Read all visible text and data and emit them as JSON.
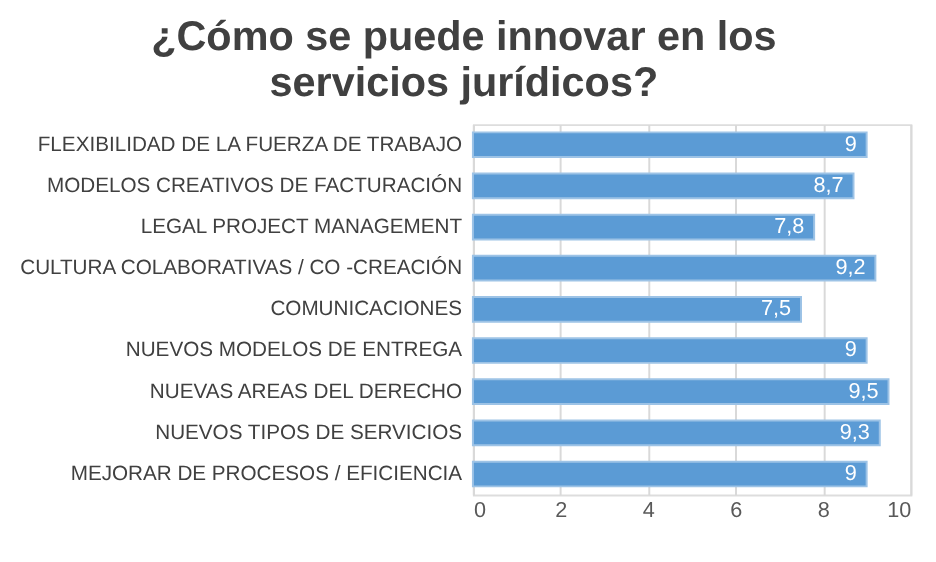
{
  "chart_data": {
    "type": "bar",
    "orientation": "horizontal",
    "title": "¿Cómo se puede innovar en los servicios jurídicos?",
    "categories": [
      "FLEXIBILIDAD DE LA FUERZA DE TRABAJO",
      "MODELOS CREATIVOS DE FACTURACIÓN",
      "LEGAL PROJECT MANAGEMENT",
      "CULTURA COLABORATIVAS / CO -CREACIÓN",
      "COMUNICACIONES",
      "NUEVOS MODELOS DE ENTREGA",
      "NUEVAS AREAS DEL DERECHO",
      "NUEVOS TIPOS DE SERVICIOS",
      "MEJORAR DE PROCESOS / EFICIENCIA"
    ],
    "values": [
      9,
      8.7,
      7.8,
      9.2,
      7.5,
      9,
      9.5,
      9.3,
      9
    ],
    "value_labels": [
      "9",
      "8,7",
      "7,8",
      "9,2",
      "7,5",
      "9",
      "9,5",
      "9,3",
      "9"
    ],
    "color": "#5b9bd5",
    "xlim": [
      0,
      10
    ],
    "xticks": [
      0,
      2,
      4,
      6,
      8,
      10
    ],
    "grid": "x"
  }
}
